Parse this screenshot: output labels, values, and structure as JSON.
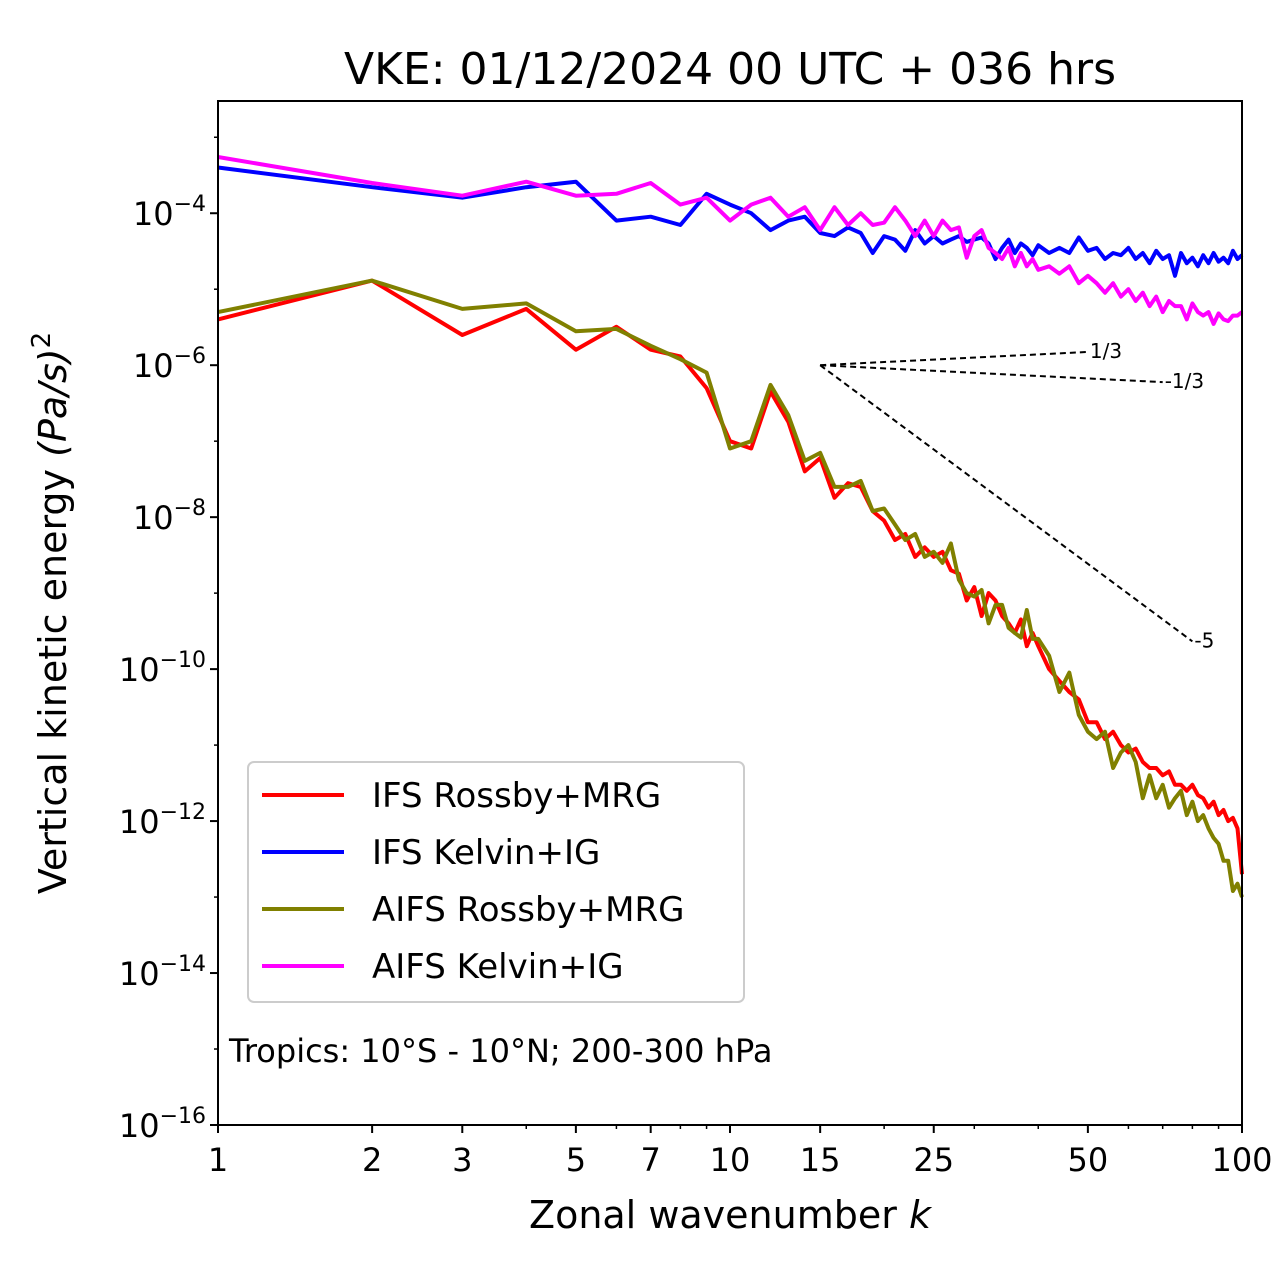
{
  "chart_data": {
    "type": "line",
    "title": "VKE: 01/12/2024 00 UTC + 036 hrs",
    "xlabel": "Zonal wavenumber",
    "xlabel_var": "k",
    "ylabel": "Vertical kinetic energy",
    "ylabel_unit_base": "(Pa/s)",
    "ylabel_unit_exp": "2",
    "xscale": "log",
    "yscale": "log",
    "xlim": [
      1,
      100
    ],
    "ylim": [
      1e-16,
      0.003
    ],
    "x_ticks": [
      {
        "value": 1,
        "label": "1"
      },
      {
        "value": 2,
        "label": "2"
      },
      {
        "value": 3,
        "label": "3"
      },
      {
        "value": 5,
        "label": "5"
      },
      {
        "value": 7,
        "label": "7"
      },
      {
        "value": 10,
        "label": "10"
      },
      {
        "value": 15,
        "label": "15"
      },
      {
        "value": 25,
        "label": "25"
      },
      {
        "value": 50,
        "label": "50"
      },
      {
        "value": 100,
        "label": "100"
      }
    ],
    "y_ticks": [
      {
        "value": 0.0001,
        "base": "10",
        "exp": "−4"
      },
      {
        "value": 1e-06,
        "base": "10",
        "exp": "−6"
      },
      {
        "value": 1e-08,
        "base": "10",
        "exp": "−8"
      },
      {
        "value": 1e-10,
        "base": "10",
        "exp": "−10"
      },
      {
        "value": 1e-12,
        "base": "10",
        "exp": "−12"
      },
      {
        "value": 1e-14,
        "base": "10",
        "exp": "−14"
      },
      {
        "value": 1e-16,
        "base": "10",
        "exp": "−16"
      }
    ],
    "legend_position": "lower-left",
    "annotation": "Tropics: 10°S - 10°N; 200-300 hPa",
    "reference_slopes": [
      {
        "label": "1/3",
        "slope": 0.3333,
        "x_start": 15,
        "y_start": 1e-06,
        "x_end": 50
      },
      {
        "label": "-1/3",
        "slope": -0.3333,
        "x_start": 15,
        "y_start": 1e-06,
        "x_end": 70
      },
      {
        "label": "-5",
        "slope": -5,
        "x_start": 15,
        "y_start": 1e-06,
        "x_end": 80
      }
    ],
    "series": [
      {
        "name": "IFS Rossby+MRG",
        "color": "#ff0000",
        "x": [
          1,
          2,
          3,
          4,
          5,
          6,
          7,
          8,
          9,
          10,
          11,
          12,
          13,
          14,
          15,
          16,
          17,
          18,
          19,
          20,
          21,
          22,
          23,
          24,
          25,
          26,
          27,
          28,
          29,
          30,
          31,
          32,
          33,
          34,
          35,
          36,
          37,
          38,
          39,
          40,
          42,
          44,
          46,
          48,
          50,
          52,
          54,
          56,
          58,
          60,
          62,
          64,
          66,
          68,
          70,
          72,
          74,
          76,
          78,
          80,
          82,
          84,
          86,
          88,
          90,
          92,
          94,
          96,
          98,
          100
        ],
        "y": [
          4e-06,
          1.3e-05,
          2.5e-06,
          5.5e-06,
          1.6e-06,
          3.2e-06,
          1.6e-06,
          1.3e-06,
          5e-07,
          1e-07,
          8e-08,
          4.5e-07,
          1.8e-07,
          4e-08,
          6e-08,
          1.8e-08,
          2.8e-08,
          2.5e-08,
          1.2e-08,
          9e-09,
          5e-09,
          6e-09,
          3e-09,
          4e-09,
          3e-09,
          3.5e-09,
          2e-09,
          1.8e-09,
          8e-10,
          1.2e-09,
          5e-10,
          1e-09,
          8e-10,
          5e-10,
          4e-10,
          3e-10,
          4.5e-10,
          2e-10,
          3e-10,
          2e-10,
          1e-10,
          7e-11,
          5e-11,
          4e-11,
          2e-11,
          2e-11,
          1.2e-11,
          1.5e-11,
          1e-11,
          8e-12,
          9e-12,
          6e-12,
          5e-12,
          5e-12,
          4e-12,
          4.5e-12,
          3e-12,
          3e-12,
          2.5e-12,
          3e-12,
          2.2e-12,
          2e-12,
          1.5e-12,
          1.8e-12,
          1.2e-12,
          1.4e-12,
          1e-12,
          1.1e-12,
          8e-13,
          2e-13
        ]
      },
      {
        "name": "IFS Kelvin+IG",
        "color": "#0000ff",
        "x": [
          1,
          2,
          3,
          4,
          5,
          6,
          7,
          8,
          9,
          10,
          11,
          12,
          13,
          14,
          15,
          16,
          17,
          18,
          19,
          20,
          21,
          22,
          23,
          24,
          25,
          26,
          27,
          28,
          29,
          30,
          31,
          32,
          33,
          34,
          35,
          36,
          37,
          38,
          39,
          40,
          42,
          44,
          46,
          48,
          50,
          52,
          54,
          56,
          58,
          60,
          62,
          64,
          66,
          68,
          70,
          72,
          74,
          76,
          78,
          80,
          82,
          84,
          86,
          88,
          90,
          92,
          94,
          96,
          98,
          100
        ],
        "y": [
          0.0004,
          0.00022,
          0.00016,
          0.00022,
          0.00026,
          8e-05,
          9e-05,
          7e-05,
          0.00018,
          0.00013,
          0.0001,
          6e-05,
          8e-05,
          9e-05,
          5.5e-05,
          5e-05,
          6.5e-05,
          5.5e-05,
          3e-05,
          5e-05,
          4.5e-05,
          3.2e-05,
          6e-05,
          4e-05,
          5e-05,
          4e-05,
          4.5e-05,
          5e-05,
          4.2e-05,
          4.5e-05,
          4.8e-05,
          4e-05,
          2.5e-05,
          3.5e-05,
          4.5e-05,
          3e-05,
          4e-05,
          3.5e-05,
          2.8e-05,
          3.8e-05,
          3e-05,
          3.5e-05,
          3e-05,
          4.8e-05,
          3.2e-05,
          3.5e-05,
          2.5e-05,
          3e-05,
          2.8e-05,
          3.5e-05,
          2.5e-05,
          3e-05,
          2.2e-05,
          3.2e-05,
          2.5e-05,
          2.8e-05,
          1.5e-05,
          3e-05,
          2.2e-05,
          2.6e-05,
          2e-05,
          2.8e-05,
          2.2e-05,
          3e-05,
          2.3e-05,
          2.6e-05,
          2.2e-05,
          3.2e-05,
          2.5e-05,
          2.8e-05
        ]
      },
      {
        "name": "AIFS Rossby+MRG",
        "color": "#808000",
        "x": [
          1,
          2,
          3,
          4,
          5,
          6,
          7,
          8,
          9,
          10,
          11,
          12,
          13,
          14,
          15,
          16,
          17,
          18,
          19,
          20,
          21,
          22,
          23,
          24,
          25,
          26,
          27,
          28,
          29,
          30,
          31,
          32,
          33,
          34,
          35,
          36,
          37,
          38,
          39,
          40,
          42,
          44,
          46,
          48,
          50,
          52,
          54,
          56,
          58,
          60,
          62,
          64,
          66,
          68,
          70,
          72,
          74,
          76,
          78,
          80,
          82,
          84,
          86,
          88,
          90,
          92,
          94,
          96,
          98,
          100
        ],
        "y": [
          5e-06,
          1.3e-05,
          5.5e-06,
          6.5e-06,
          2.8e-06,
          3e-06,
          1.8e-06,
          1.2e-06,
          8e-07,
          8e-08,
          1e-07,
          5.5e-07,
          2.2e-07,
          5.5e-08,
          7e-08,
          2.5e-08,
          2.5e-08,
          3e-08,
          1.2e-08,
          1.3e-08,
          8e-09,
          5e-09,
          6e-09,
          3e-09,
          3.5e-09,
          2.5e-09,
          4.5e-09,
          1.5e-09,
          1e-09,
          9e-10,
          1.1e-09,
          4e-10,
          7e-10,
          7e-10,
          3.5e-10,
          3e-10,
          2.6e-10,
          6e-10,
          2.5e-10,
          2.5e-10,
          1.5e-10,
          5e-11,
          9e-11,
          2.5e-11,
          1.5e-11,
          1.2e-11,
          1.5e-11,
          5e-12,
          8e-12,
          1e-11,
          6e-12,
          2e-12,
          4e-12,
          2e-12,
          3e-12,
          1.5e-12,
          2e-12,
          2.5e-12,
          1.2e-12,
          1.8e-12,
          1e-12,
          1.2e-12,
          8e-13,
          6e-13,
          5e-13,
          3e-13,
          3e-13,
          1.2e-13,
          1.5e-13,
          1e-13
        ]
      },
      {
        "name": "AIFS Kelvin+IG",
        "color": "#ff00ff",
        "x": [
          1,
          2,
          3,
          4,
          5,
          6,
          7,
          8,
          9,
          10,
          11,
          12,
          13,
          14,
          15,
          16,
          17,
          18,
          19,
          20,
          21,
          22,
          23,
          24,
          25,
          26,
          27,
          28,
          29,
          30,
          31,
          32,
          33,
          34,
          35,
          36,
          37,
          38,
          39,
          40,
          42,
          44,
          46,
          48,
          50,
          52,
          54,
          56,
          58,
          60,
          62,
          64,
          66,
          68,
          70,
          72,
          74,
          76,
          78,
          80,
          82,
          84,
          86,
          88,
          90,
          92,
          94,
          96,
          98,
          100
        ],
        "y": [
          0.00055,
          0.00025,
          0.00017,
          0.00026,
          0.00017,
          0.00018,
          0.00025,
          0.00013,
          0.00016,
          8e-05,
          0.00013,
          0.00016,
          9e-05,
          0.00012,
          6e-05,
          0.00012,
          7e-05,
          0.0001,
          7e-05,
          7.5e-05,
          0.00012,
          8e-05,
          5e-05,
          8e-05,
          5e-05,
          8e-05,
          6e-05,
          6.5e-05,
          2.6e-05,
          5e-05,
          6e-05,
          3.5e-05,
          3e-05,
          2.5e-05,
          3.5e-05,
          2e-05,
          3e-05,
          2e-05,
          2.5e-05,
          1.8e-05,
          2e-05,
          1.6e-05,
          2e-05,
          1.2e-05,
          1.5e-05,
          1.2e-05,
          9e-06,
          1.2e-05,
          8e-06,
          1e-05,
          7e-06,
          9e-06,
          6e-06,
          8e-06,
          5e-06,
          7e-06,
          6e-06,
          6e-06,
          4e-06,
          6.5e-06,
          5e-06,
          4.5e-06,
          5e-06,
          3.5e-06,
          4.8e-06,
          4e-06,
          3.8e-06,
          4.5e-06,
          4.5e-06,
          5e-06
        ]
      }
    ]
  }
}
